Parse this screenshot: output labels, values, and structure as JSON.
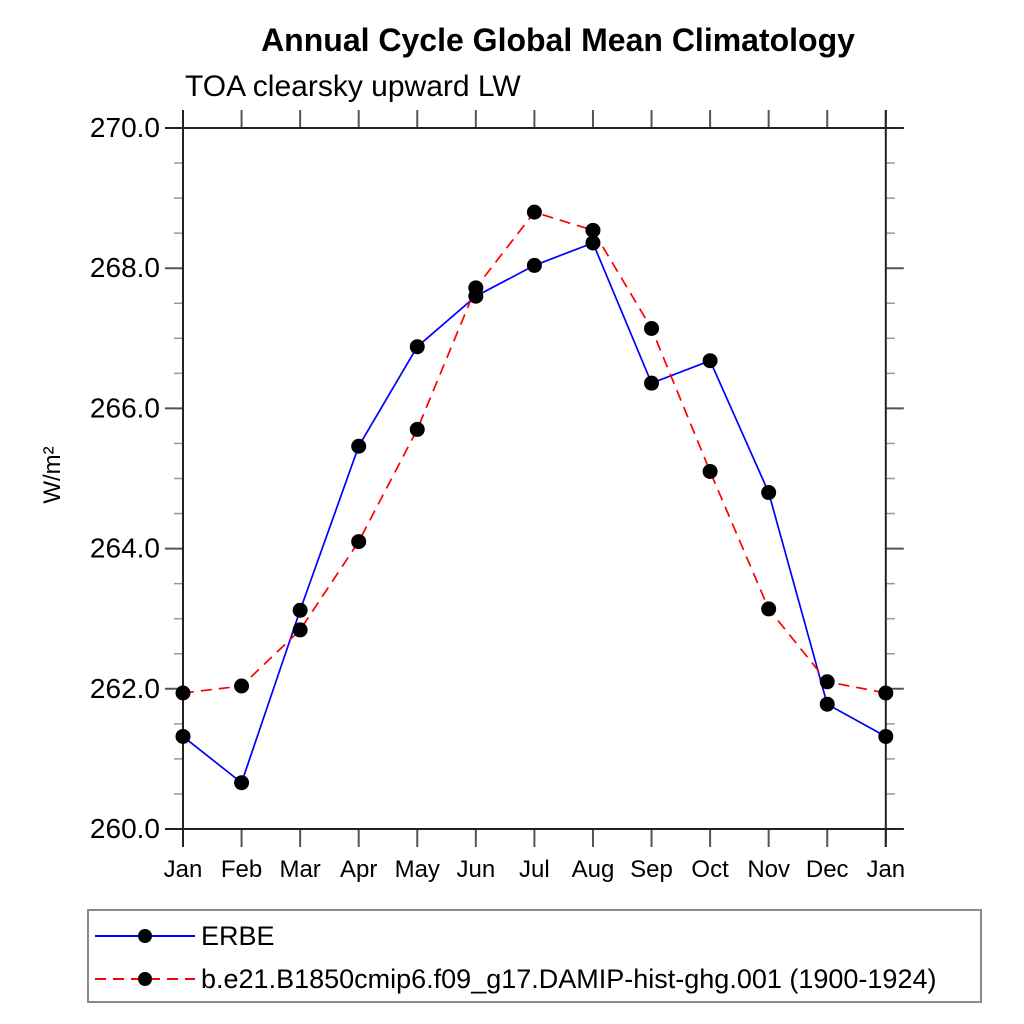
{
  "chart_data": {
    "type": "line",
    "title": "Annual Cycle Global Mean Climatology",
    "subtitle": "TOA clearsky upward LW",
    "ylabel": "W/m²",
    "categories": [
      "Jan",
      "Feb",
      "Mar",
      "Apr",
      "May",
      "Jun",
      "Jul",
      "Aug",
      "Sep",
      "Oct",
      "Nov",
      "Dec",
      "Jan"
    ],
    "ylim": [
      260.0,
      270.0
    ],
    "ytick_step": 2.0,
    "yminor_step": 0.5,
    "ytick_labels": [
      "260.0",
      "262.0",
      "264.0",
      "266.0",
      "268.0",
      "270.0"
    ],
    "grid": false,
    "legend_position": "bottom-left-box",
    "series": [
      {
        "name": "ERBE",
        "color": "#0000ff",
        "line_style": "solid",
        "marker": "filled-circle",
        "marker_color": "#000000",
        "values": [
          261.32,
          260.66,
          263.12,
          265.46,
          266.88,
          267.6,
          268.04,
          268.36,
          266.36,
          266.68,
          264.8,
          261.78,
          261.32
        ]
      },
      {
        "name": "b.e21.B1850cmip6.f09_g17.DAMIP-hist-ghg.001 (1900-1924)",
        "color": "#ff0000",
        "line_style": "dashed",
        "marker": "filled-circle",
        "marker_color": "#000000",
        "values": [
          261.94,
          262.04,
          262.84,
          264.1,
          265.7,
          267.72,
          268.8,
          268.54,
          267.14,
          265.1,
          263.14,
          262.1,
          261.94
        ]
      }
    ]
  }
}
